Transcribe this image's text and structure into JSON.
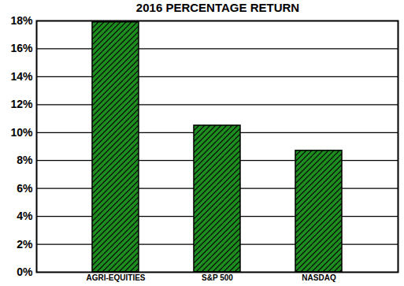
{
  "chart_data": {
    "type": "bar",
    "title": "2016 PERCENTAGE RETURN",
    "categories": [
      "AGRI-EQUITIES",
      "S&P 500",
      "NASDAQ"
    ],
    "values": [
      17.9,
      10.5,
      8.7
    ],
    "color": "#1e8c1e",
    "ylim": [
      0,
      18
    ],
    "yticks": [
      {
        "value": 0,
        "label": "0%"
      },
      {
        "value": 2,
        "label": "2%"
      },
      {
        "value": 4,
        "label": "4%"
      },
      {
        "value": 6,
        "label": "6%"
      },
      {
        "value": 8,
        "label": "8%"
      },
      {
        "value": 10,
        "label": "10%"
      },
      {
        "value": 12,
        "label": "12%"
      },
      {
        "value": 14,
        "label": "14%"
      },
      {
        "value": 16,
        "label": "16%"
      },
      {
        "value": 18,
        "label": "18%"
      }
    ],
    "grid": true
  }
}
